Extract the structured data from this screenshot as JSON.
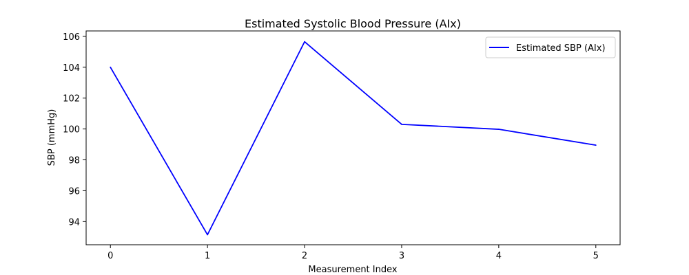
{
  "chart_data": {
    "type": "line",
    "title": "Estimated Systolic Blood Pressure (AIx)",
    "xlabel": "Measurement Index",
    "ylabel": "SBP (mmHg)",
    "x": [
      0,
      1,
      2,
      3,
      4,
      5
    ],
    "series": [
      {
        "name": "Estimated SBP (AIx)",
        "values": [
          104.0,
          93.15,
          105.65,
          100.3,
          99.98,
          98.95
        ],
        "color": "#0000ff"
      }
    ],
    "xlim": [
      -0.25,
      5.25
    ],
    "ylim": [
      92.5,
      106.35
    ],
    "xticks": [
      0,
      1,
      2,
      3,
      4,
      5
    ],
    "yticks": [
      94,
      96,
      98,
      100,
      102,
      104,
      106
    ],
    "grid": false,
    "legend_position": "top-right"
  }
}
